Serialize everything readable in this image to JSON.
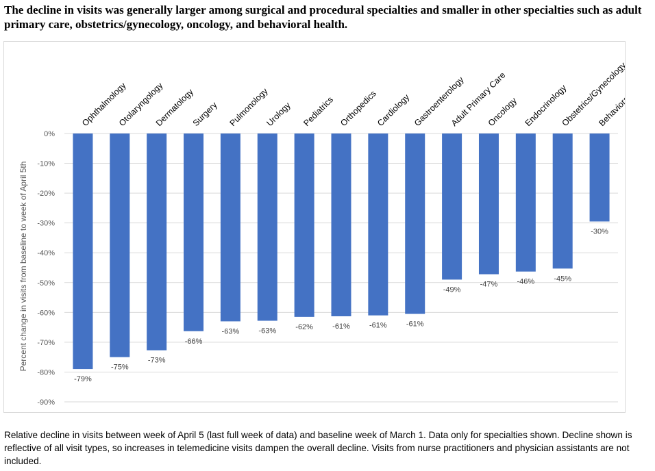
{
  "title": "The decline in visits was generally larger among surgical and procedural specialties and smaller in other specialties such as adult primary care, obstetrics/gynecology, oncology, and behavioral health.",
  "caption": "Relative decline in visits between week of April 5 (last full week of data) and baseline week of March 1. Data only for specialties shown. Decline shown is reflective of all visit types, so increases in telemedicine visits dampen the overall decline. Visits from nurse practitioners and physician assistants are not included.",
  "chart_data": {
    "type": "bar",
    "ylabel": "Percent change in visits from baseline to week of April 5th",
    "ylim": [
      -90,
      0
    ],
    "yticks": [
      0,
      -10,
      -20,
      -30,
      -40,
      -50,
      -60,
      -70,
      -80,
      -90
    ],
    "ytick_labels": [
      "0%",
      "-10%",
      "-20%",
      "-30%",
      "-40%",
      "-50%",
      "-60%",
      "-70%",
      "-80%",
      "-90%"
    ],
    "grid": true,
    "bar_color": "#4472C4",
    "categories": [
      "Ophthalmology",
      "Otolaryngology",
      "Dermatology",
      "Surgery",
      "Pulmonology",
      "Urology",
      "Pediatrics",
      "Orthopedics",
      "Cardiology",
      "Gastroenterology",
      "Adult Primary Care",
      "Oncology",
      "Endocrinology",
      "Obstetrics/Gynecology",
      "Behavioral Health"
    ],
    "values": [
      -79,
      -75,
      -72.7,
      -66.3,
      -63,
      -62.8,
      -61.5,
      -61.3,
      -61,
      -60.5,
      -49,
      -47.2,
      -46.3,
      -45.3,
      -29.5
    ],
    "data_labels": [
      "-79%",
      "-75%",
      "-73%",
      "-66%",
      "-63%",
      "-63%",
      "-62%",
      "-61%",
      "-61%",
      "-61%",
      "-49%",
      "-47%",
      "-46%",
      "-45%",
      "-30%"
    ]
  }
}
